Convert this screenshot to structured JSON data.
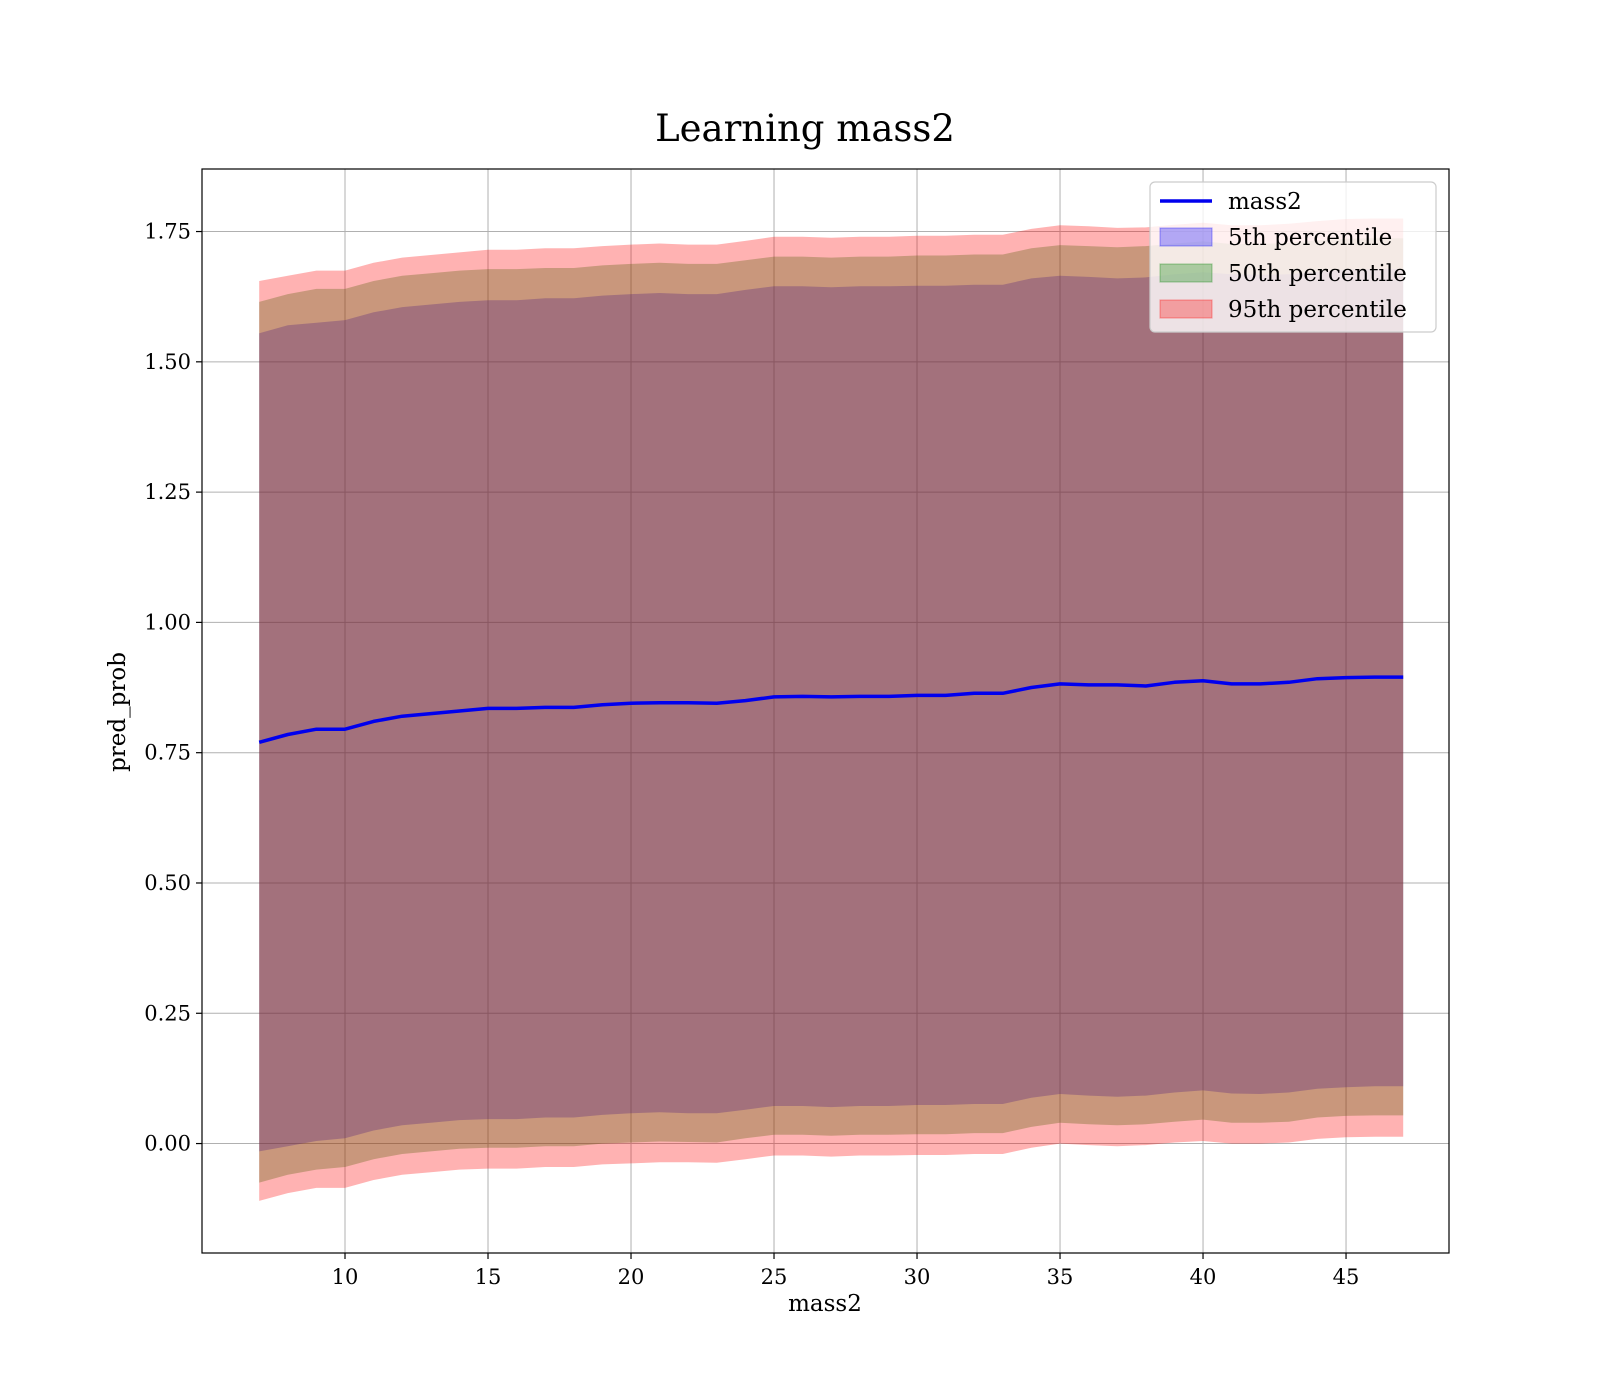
{
  "chart_data": {
    "type": "area",
    "title": "Learning mass2",
    "xlabel": "mass2",
    "ylabel": "pred_prob",
    "xlim": [
      5.0,
      48.6
    ],
    "ylim": [
      -0.21,
      1.87
    ],
    "xticks": [
      10,
      15,
      20,
      25,
      30,
      35,
      40,
      45
    ],
    "xtick_labels": [
      "10",
      "15",
      "20",
      "25",
      "30",
      "35",
      "40",
      "45"
    ],
    "yticks": [
      0.0,
      0.25,
      0.5,
      0.75,
      1.0,
      1.25,
      1.5,
      1.75
    ],
    "ytick_labels": [
      "0.00",
      "0.25",
      "0.50",
      "0.75",
      "1.00",
      "1.25",
      "1.50",
      "1.75"
    ],
    "grid": true,
    "legend_position": "top-right",
    "colors": {
      "line": "#0000ee",
      "band_5th": "#0000ff",
      "band_50th": "#008000",
      "band_95th": "#ff0000"
    },
    "x": [
      7,
      8,
      9,
      10,
      11,
      12,
      13,
      14,
      15,
      16,
      17,
      18,
      19,
      20,
      21,
      22,
      23,
      24,
      25,
      26,
      27,
      28,
      29,
      30,
      31,
      32,
      33,
      34,
      35,
      36,
      37,
      38,
      39,
      40,
      41,
      42,
      43,
      44,
      45,
      46,
      47
    ],
    "series": [
      {
        "name": "mass2",
        "kind": "line",
        "values": [
          0.77,
          0.785,
          0.795,
          0.795,
          0.81,
          0.82,
          0.825,
          0.83,
          0.835,
          0.835,
          0.837,
          0.837,
          0.842,
          0.845,
          0.846,
          0.846,
          0.845,
          0.85,
          0.857,
          0.858,
          0.857,
          0.858,
          0.858,
          0.86,
          0.86,
          0.864,
          0.864,
          0.875,
          0.882,
          0.88,
          0.88,
          0.878,
          0.885,
          0.888,
          0.882,
          0.882,
          0.885,
          0.892,
          0.894,
          0.895,
          0.895
        ]
      },
      {
        "name": "5th percentile",
        "kind": "band",
        "lower": [
          -0.015,
          -0.005,
          0.005,
          0.01,
          0.025,
          0.035,
          0.04,
          0.045,
          0.047,
          0.047,
          0.05,
          0.05,
          0.055,
          0.058,
          0.06,
          0.058,
          0.058,
          0.065,
          0.072,
          0.072,
          0.07,
          0.072,
          0.072,
          0.074,
          0.074,
          0.076,
          0.076,
          0.088,
          0.095,
          0.092,
          0.09,
          0.092,
          0.098,
          0.102,
          0.096,
          0.095,
          0.098,
          0.105,
          0.108,
          0.11,
          0.11
        ],
        "upper": [
          1.555,
          1.57,
          1.575,
          1.58,
          1.595,
          1.605,
          1.61,
          1.615,
          1.618,
          1.618,
          1.622,
          1.622,
          1.627,
          1.63,
          1.632,
          1.63,
          1.63,
          1.638,
          1.645,
          1.645,
          1.643,
          1.645,
          1.645,
          1.646,
          1.646,
          1.648,
          1.648,
          1.66,
          1.665,
          1.663,
          1.66,
          1.662,
          1.668,
          1.672,
          1.668,
          1.667,
          1.668,
          1.673,
          1.677,
          1.678,
          1.678
        ]
      },
      {
        "name": "50th percentile",
        "kind": "band",
        "lower": [
          -0.075,
          -0.06,
          -0.05,
          -0.045,
          -0.03,
          -0.02,
          -0.015,
          -0.01,
          -0.008,
          -0.008,
          -0.005,
          -0.005,
          0.0,
          0.002,
          0.004,
          0.003,
          0.002,
          0.01,
          0.017,
          0.017,
          0.015,
          0.017,
          0.017,
          0.018,
          0.018,
          0.02,
          0.02,
          0.032,
          0.04,
          0.037,
          0.035,
          0.037,
          0.042,
          0.046,
          0.04,
          0.04,
          0.042,
          0.05,
          0.053,
          0.054,
          0.054
        ],
        "upper": [
          1.615,
          1.63,
          1.64,
          1.64,
          1.655,
          1.665,
          1.67,
          1.675,
          1.678,
          1.678,
          1.68,
          1.68,
          1.685,
          1.688,
          1.69,
          1.688,
          1.688,
          1.695,
          1.702,
          1.702,
          1.7,
          1.702,
          1.702,
          1.704,
          1.704,
          1.706,
          1.706,
          1.718,
          1.724,
          1.722,
          1.72,
          1.722,
          1.727,
          1.731,
          1.726,
          1.726,
          1.728,
          1.733,
          1.736,
          1.737,
          1.737
        ]
      },
      {
        "name": "95th percentile",
        "kind": "band",
        "lower": [
          -0.11,
          -0.095,
          -0.085,
          -0.085,
          -0.07,
          -0.06,
          -0.055,
          -0.05,
          -0.048,
          -0.048,
          -0.045,
          -0.045,
          -0.04,
          -0.038,
          -0.036,
          -0.036,
          -0.037,
          -0.03,
          -0.023,
          -0.023,
          -0.025,
          -0.023,
          -0.023,
          -0.022,
          -0.022,
          -0.02,
          -0.02,
          -0.008,
          0.0,
          -0.003,
          -0.005,
          -0.003,
          0.002,
          0.005,
          0.0,
          0.0,
          0.002,
          0.009,
          0.012,
          0.013,
          0.013
        ],
        "upper": [
          1.655,
          1.665,
          1.675,
          1.675,
          1.69,
          1.7,
          1.705,
          1.71,
          1.715,
          1.715,
          1.718,
          1.718,
          1.722,
          1.725,
          1.727,
          1.725,
          1.725,
          1.732,
          1.74,
          1.74,
          1.738,
          1.74,
          1.74,
          1.742,
          1.742,
          1.744,
          1.744,
          1.755,
          1.762,
          1.76,
          1.757,
          1.758,
          1.763,
          1.767,
          1.762,
          1.762,
          1.765,
          1.77,
          1.774,
          1.775,
          1.775
        ]
      }
    ]
  }
}
